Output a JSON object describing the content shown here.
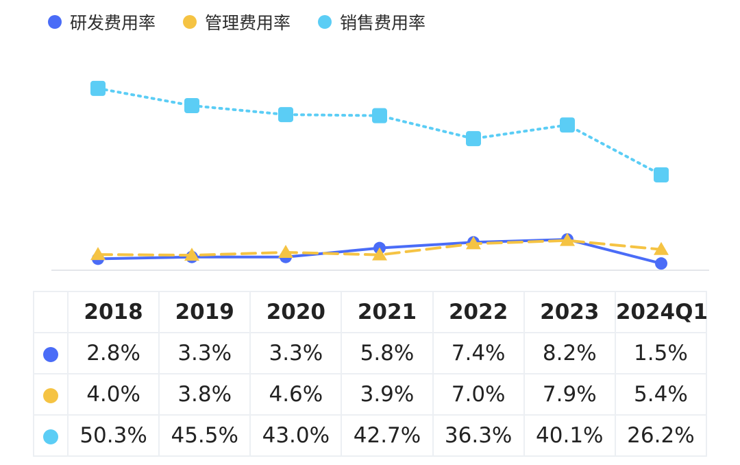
{
  "chart_data": {
    "type": "line",
    "categories": [
      "2018",
      "2019",
      "2020",
      "2021",
      "2022",
      "2023",
      "2024Q1"
    ],
    "series": [
      {
        "name": "研发费用率",
        "values": [
          2.8,
          3.3,
          3.3,
          5.8,
          7.4,
          8.2,
          1.5
        ],
        "labels": [
          "2.8%",
          "3.3%",
          "3.3%",
          "5.8%",
          "7.4%",
          "8.2%",
          "1.5%"
        ],
        "color": "#4a6cf7",
        "line_style": "solid",
        "marker": "circle"
      },
      {
        "name": "管理费用率",
        "values": [
          4.0,
          3.8,
          4.6,
          3.9,
          7.0,
          7.9,
          5.4
        ],
        "labels": [
          "4.0%",
          "3.8%",
          "4.6%",
          "3.9%",
          "7.0%",
          "7.9%",
          "5.4%"
        ],
        "color": "#f5c343",
        "line_style": "dashed",
        "marker": "triangle"
      },
      {
        "name": "销售费用率",
        "values": [
          50.3,
          45.5,
          43.0,
          42.7,
          36.3,
          40.1,
          26.2
        ],
        "labels": [
          "50.3%",
          "45.5%",
          "43.0%",
          "42.7%",
          "36.3%",
          "40.1%",
          "26.2%"
        ],
        "color": "#5bcdf5",
        "line_style": "dotted",
        "marker": "square"
      }
    ],
    "ylim": [
      0,
      52
    ],
    "grid": false,
    "legend_position": "top-left"
  }
}
